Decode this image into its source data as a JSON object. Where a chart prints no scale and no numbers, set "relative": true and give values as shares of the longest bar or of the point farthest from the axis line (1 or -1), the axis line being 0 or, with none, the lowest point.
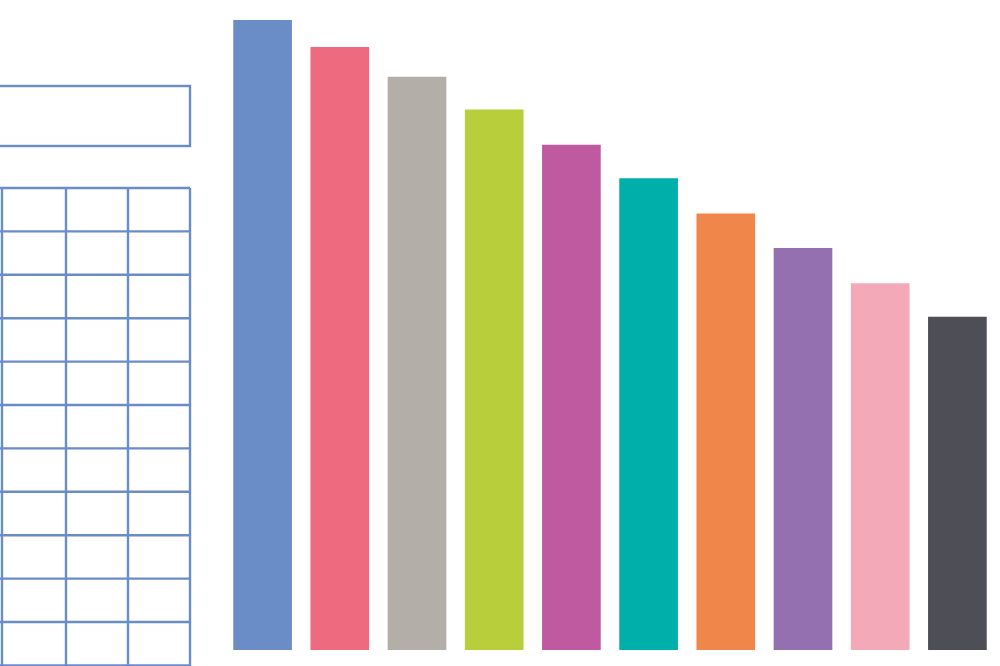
{
  "chart_data": {
    "type": "bar",
    "relative": true,
    "categories": [
      null,
      null,
      null,
      null,
      null,
      null,
      null,
      null,
      null,
      null
    ],
    "values": [
      1,
      0.957,
      0.91,
      0.858,
      0.802,
      0.749,
      0.693,
      0.638,
      0.582,
      0.529
    ],
    "colors": [
      "#6a8cc7",
      "#ee6a7e",
      "#b3aea8",
      "#b8cf3b",
      "#c05aa0",
      "#00aeaa",
      "#f0864a",
      "#9470b0",
      "#f4a9b8",
      "#4d4e56"
    ],
    "data_labels": false
  }
}
